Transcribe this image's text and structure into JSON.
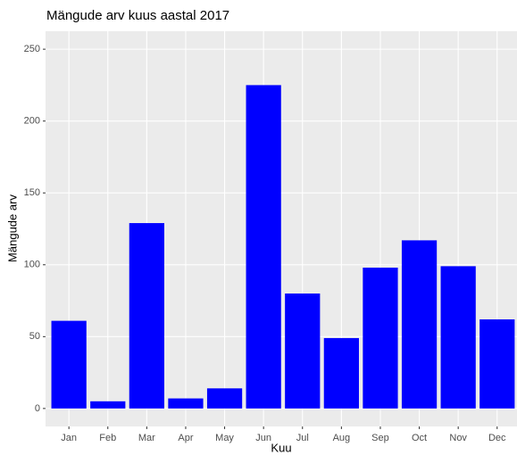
{
  "chart_data": {
    "type": "bar",
    "title": "Mängude arv kuus aastal 2017",
    "x_label": "Kuu",
    "y_label": "Mängude arv",
    "categories": [
      "Jan",
      "Feb",
      "Mar",
      "Apr",
      "May",
      "Jun",
      "Jul",
      "Aug",
      "Sep",
      "Oct",
      "Nov",
      "Dec"
    ],
    "values": [
      61,
      5,
      129,
      7,
      14,
      225,
      80,
      49,
      98,
      117,
      99,
      62
    ],
    "color": "#0000ff",
    "ylim": [
      -12.5,
      262.5
    ],
    "yticks": [
      0,
      50,
      100,
      150,
      200,
      250
    ],
    "grid": true
  }
}
